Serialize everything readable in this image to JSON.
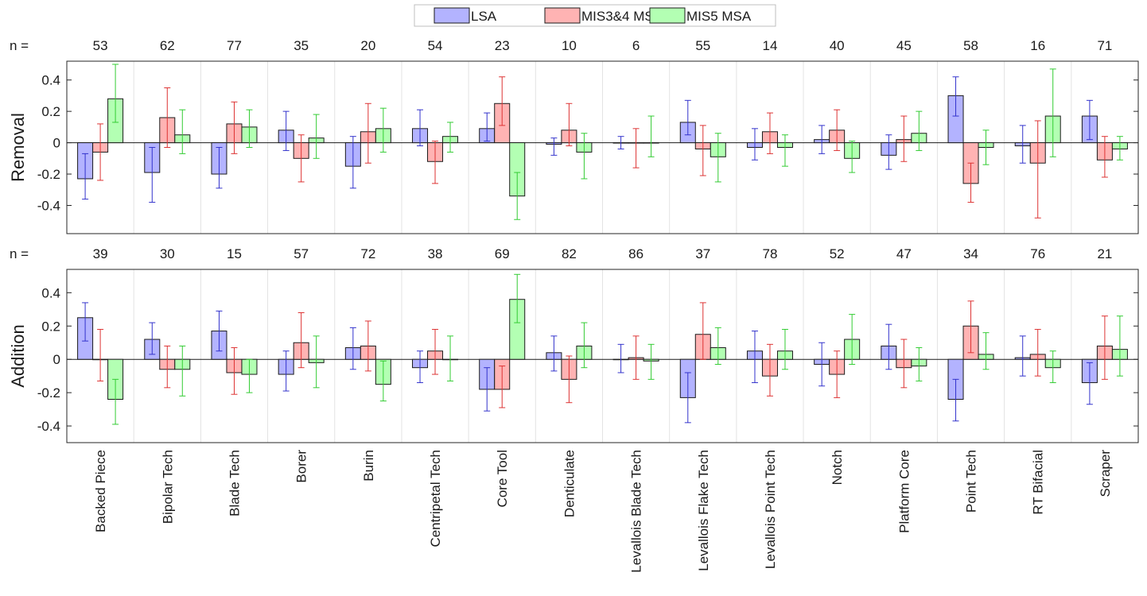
{
  "chart_data": {
    "type": "bar",
    "legend": {
      "position": "top-center",
      "entries": [
        "LSA",
        "MIS3&4 MSA",
        "MIS5 MSA"
      ]
    },
    "series_colors": {
      "LSA": {
        "fill": "#b3b3ff",
        "err": "#3333cc"
      },
      "MIS3&4 MSA": {
        "fill": "#ffb3b3",
        "err": "#dd3333"
      },
      "MIS5 MSA": {
        "fill": "#b3ffb3",
        "err": "#33cc33"
      }
    },
    "categories": [
      "Backed Piece",
      "Bipolar Tech",
      "Blade Tech",
      "Borer",
      "Burin",
      "Centripetal Tech",
      "Core Tool",
      "Denticulate",
      "Levallois Blade Tech",
      "Levallois Flake Tech",
      "Levallois Point Tech",
      "Notch",
      "Platform Core",
      "Point Tech",
      "RT Bifacial",
      "Scraper"
    ],
    "n_label": "n =",
    "panels": [
      {
        "ylabel": "Removal",
        "ylim": [
          -0.58,
          0.52
        ],
        "yticks": [
          -0.4,
          -0.2,
          0,
          0.2,
          0.4
        ],
        "ytick_labels": [
          "-0.4",
          "-0.2",
          "0",
          "0.2",
          "0.4"
        ],
        "n": [
          "53",
          "62",
          "77",
          "35",
          "20",
          "54",
          "23",
          "10",
          "6",
          "55",
          "14",
          "40",
          "45",
          "58",
          "16",
          "71"
        ],
        "series": [
          {
            "name": "LSA",
            "values": [
              -0.23,
              -0.19,
              -0.2,
              0.08,
              -0.15,
              0.09,
              0.09,
              -0.01,
              0.0,
              0.13,
              -0.03,
              0.02,
              -0.08,
              0.3,
              -0.02,
              0.17
            ],
            "err_low": [
              -0.36,
              -0.38,
              -0.29,
              -0.05,
              -0.29,
              -0.02,
              0.01,
              -0.08,
              -0.04,
              0.05,
              -0.11,
              -0.07,
              -0.17,
              0.17,
              -0.13,
              0.02
            ],
            "err_high": [
              -0.07,
              -0.03,
              -0.03,
              0.2,
              0.04,
              0.21,
              0.19,
              0.03,
              0.04,
              0.27,
              0.09,
              0.11,
              0.05,
              0.42,
              0.11,
              0.27
            ]
          },
          {
            "name": "MIS3&4 MSA",
            "values": [
              -0.06,
              0.16,
              0.12,
              -0.1,
              0.07,
              -0.12,
              0.25,
              0.08,
              0.0,
              -0.04,
              0.07,
              0.08,
              0.02,
              -0.26,
              -0.13,
              -0.11
            ],
            "err_low": [
              -0.24,
              -0.03,
              -0.07,
              -0.25,
              -0.13,
              -0.26,
              0.11,
              -0.02,
              -0.16,
              -0.21,
              -0.07,
              -0.05,
              -0.12,
              -0.38,
              -0.48,
              -0.22
            ],
            "err_high": [
              0.12,
              0.35,
              0.26,
              0.05,
              0.25,
              0.01,
              0.42,
              0.25,
              0.09,
              0.11,
              0.19,
              0.21,
              0.17,
              -0.13,
              0.14,
              0.04
            ]
          },
          {
            "name": "MIS5 MSA",
            "values": [
              0.28,
              0.05,
              0.1,
              0.03,
              0.09,
              0.04,
              -0.34,
              -0.06,
              0.0,
              -0.09,
              -0.03,
              -0.1,
              0.06,
              -0.03,
              0.17,
              -0.04
            ],
            "err_low": [
              0.13,
              -0.07,
              -0.03,
              -0.1,
              -0.06,
              -0.06,
              -0.49,
              -0.23,
              -0.09,
              -0.25,
              -0.15,
              -0.19,
              -0.05,
              -0.14,
              -0.09,
              -0.11
            ],
            "err_high": [
              0.5,
              0.21,
              0.21,
              0.18,
              0.22,
              0.13,
              -0.19,
              0.06,
              0.17,
              0.06,
              0.05,
              0.01,
              0.2,
              0.08,
              0.47,
              0.04
            ]
          }
        ]
      },
      {
        "ylabel": "Addition",
        "ylim": [
          -0.5,
          0.54
        ],
        "yticks": [
          -0.4,
          -0.2,
          0,
          0.2,
          0.4
        ],
        "ytick_labels": [
          "-0.4",
          "-0.2",
          "0",
          "0.2",
          "0.4"
        ],
        "n": [
          "39",
          "30",
          "15",
          "57",
          "72",
          "38",
          "69",
          "82",
          "86",
          "37",
          "78",
          "52",
          "47",
          "34",
          "76",
          "21"
        ],
        "series": [
          {
            "name": "LSA",
            "values": [
              0.25,
              0.12,
              0.17,
              -0.09,
              0.07,
              -0.05,
              -0.18,
              0.04,
              0.0,
              -0.23,
              0.05,
              -0.03,
              0.08,
              -0.24,
              0.01,
              -0.14
            ],
            "err_low": [
              0.11,
              0.03,
              0.05,
              -0.19,
              -0.06,
              -0.14,
              -0.31,
              -0.07,
              -0.08,
              -0.38,
              -0.14,
              -0.16,
              -0.06,
              -0.37,
              -0.1,
              -0.27
            ],
            "err_high": [
              0.34,
              0.22,
              0.29,
              0.05,
              0.19,
              0.05,
              -0.05,
              0.14,
              0.09,
              -0.08,
              0.17,
              0.1,
              0.21,
              -0.12,
              0.14,
              -0.02
            ]
          },
          {
            "name": "MIS3&4 MSA",
            "values": [
              0.0,
              -0.06,
              -0.08,
              0.1,
              0.08,
              0.05,
              -0.18,
              -0.12,
              0.01,
              0.15,
              -0.1,
              -0.09,
              -0.05,
              0.2,
              0.03,
              0.08
            ],
            "err_low": [
              -0.13,
              -0.17,
              -0.21,
              -0.05,
              -0.07,
              -0.09,
              -0.29,
              -0.26,
              -0.12,
              0.0,
              -0.22,
              -0.23,
              -0.17,
              0.04,
              -0.1,
              -0.12
            ],
            "err_high": [
              0.18,
              0.08,
              0.07,
              0.28,
              0.23,
              0.18,
              -0.04,
              0.02,
              0.14,
              0.34,
              0.09,
              0.05,
              0.12,
              0.35,
              0.18,
              0.26
            ]
          },
          {
            "name": "MIS5 MSA",
            "values": [
              -0.24,
              -0.06,
              -0.09,
              -0.02,
              -0.15,
              0.0,
              0.36,
              0.08,
              -0.01,
              0.07,
              0.05,
              0.12,
              -0.04,
              0.03,
              -0.05,
              0.06
            ],
            "err_low": [
              -0.39,
              -0.22,
              -0.2,
              -0.17,
              -0.25,
              -0.13,
              0.22,
              -0.05,
              -0.12,
              -0.03,
              -0.06,
              -0.03,
              -0.13,
              -0.06,
              -0.14,
              -0.1
            ],
            "err_high": [
              -0.12,
              0.08,
              0.0,
              0.14,
              -0.01,
              0.14,
              0.51,
              0.22,
              0.09,
              0.19,
              0.18,
              0.27,
              0.07,
              0.16,
              0.05,
              0.26
            ]
          }
        ]
      }
    ]
  }
}
